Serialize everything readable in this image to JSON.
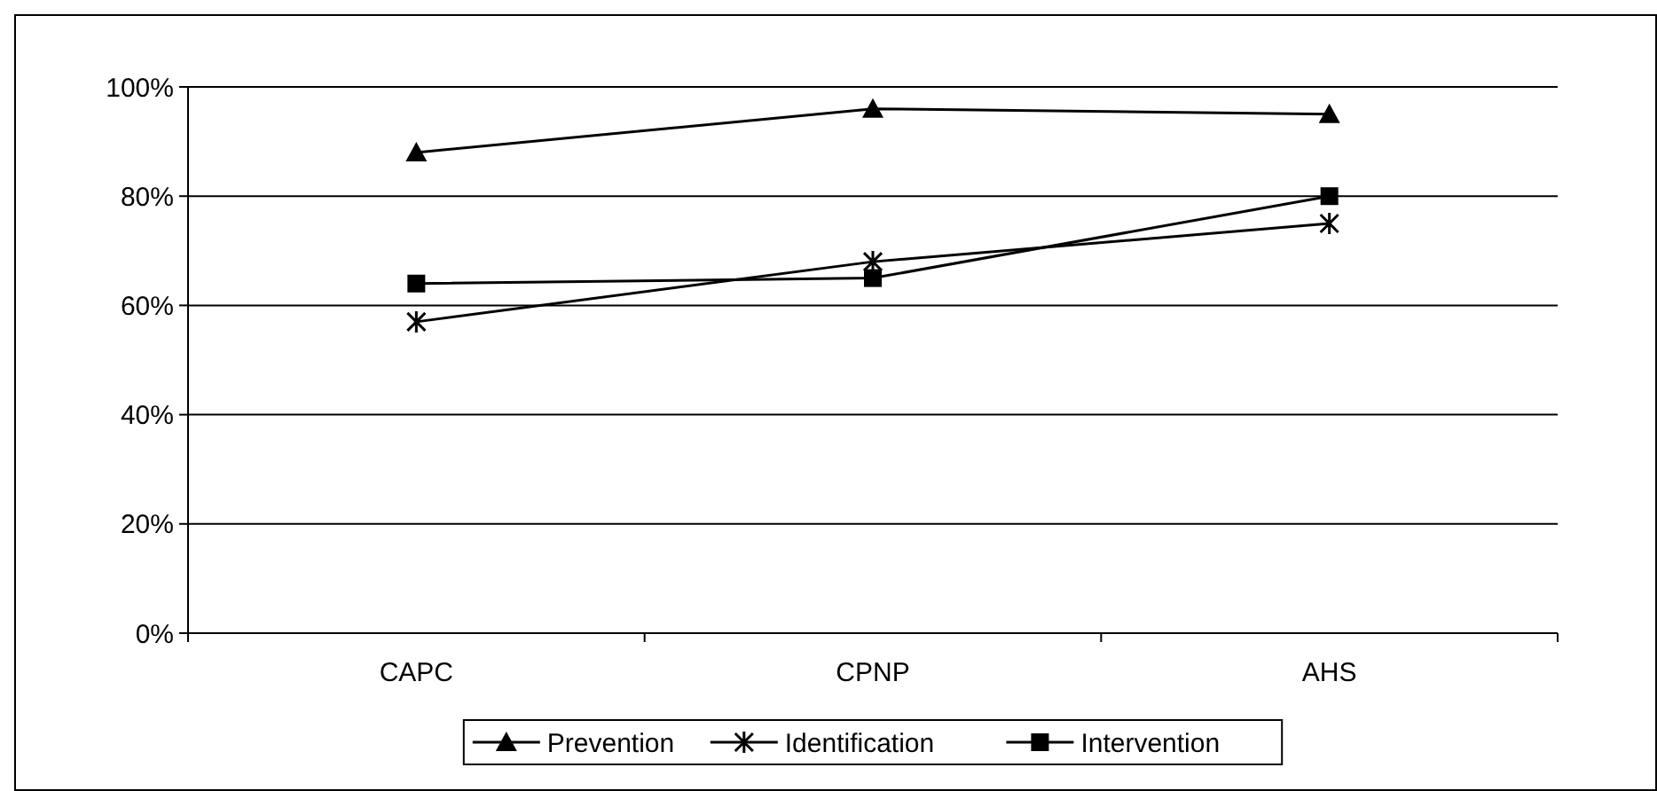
{
  "chart_data": {
    "type": "line",
    "categories": [
      "CAPC",
      "CPNP",
      "AHS"
    ],
    "series": [
      {
        "name": "Prevention",
        "color": "#000000",
        "marker": "triangle",
        "values": [
          88,
          96,
          95
        ]
      },
      {
        "name": "Identification",
        "color": "#000000",
        "marker": "cross",
        "values": [
          57,
          68,
          75
        ]
      },
      {
        "name": "Intervention",
        "color": "#000000",
        "marker": "square",
        "values": [
          64,
          65,
          80
        ]
      }
    ],
    "ylim": [
      0,
      100
    ],
    "yticks": [
      {
        "value": 0,
        "label": "0%"
      },
      {
        "value": 20,
        "label": "20%"
      },
      {
        "value": 40,
        "label": "40%"
      },
      {
        "value": 60,
        "label": "60%"
      },
      {
        "value": 80,
        "label": "80%"
      },
      {
        "value": 100,
        "label": "100%"
      }
    ],
    "grid": "y",
    "legend": "bottom",
    "line_style": "solid"
  }
}
